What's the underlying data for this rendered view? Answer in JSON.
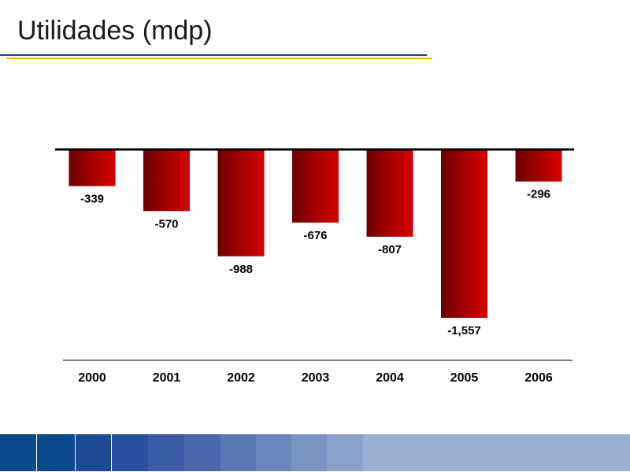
{
  "slide": {
    "title": "Utilidades (mdp)"
  },
  "chart_data": {
    "type": "bar",
    "categories": [
      "2000",
      "2001",
      "2002",
      "2003",
      "2004",
      "2005",
      "2006"
    ],
    "values": [
      -339,
      -570,
      -988,
      -676,
      -807,
      -1557,
      -296
    ],
    "data_labels": [
      "-339",
      "-570",
      "-988",
      "-676",
      "-807",
      "-1,557",
      "-296"
    ],
    "title": "",
    "xlabel": "",
    "ylabel": "",
    "ylim": [
      -1557,
      0
    ],
    "grid": false,
    "legend": "none",
    "colors": {
      "bar_dark": "#6e0000",
      "bar_light": "#d80000",
      "baseline": "#000000"
    }
  },
  "footer": {
    "colors": [
      "#0a4a8c",
      "#0a4a8c",
      "#1a4a94",
      "#2a52a0",
      "#3a5ca6",
      "#4a68ac",
      "#5a78b2",
      "#6a86ba",
      "#7a94c2",
      "#8aa2c8",
      "#9ab0d2"
    ]
  }
}
